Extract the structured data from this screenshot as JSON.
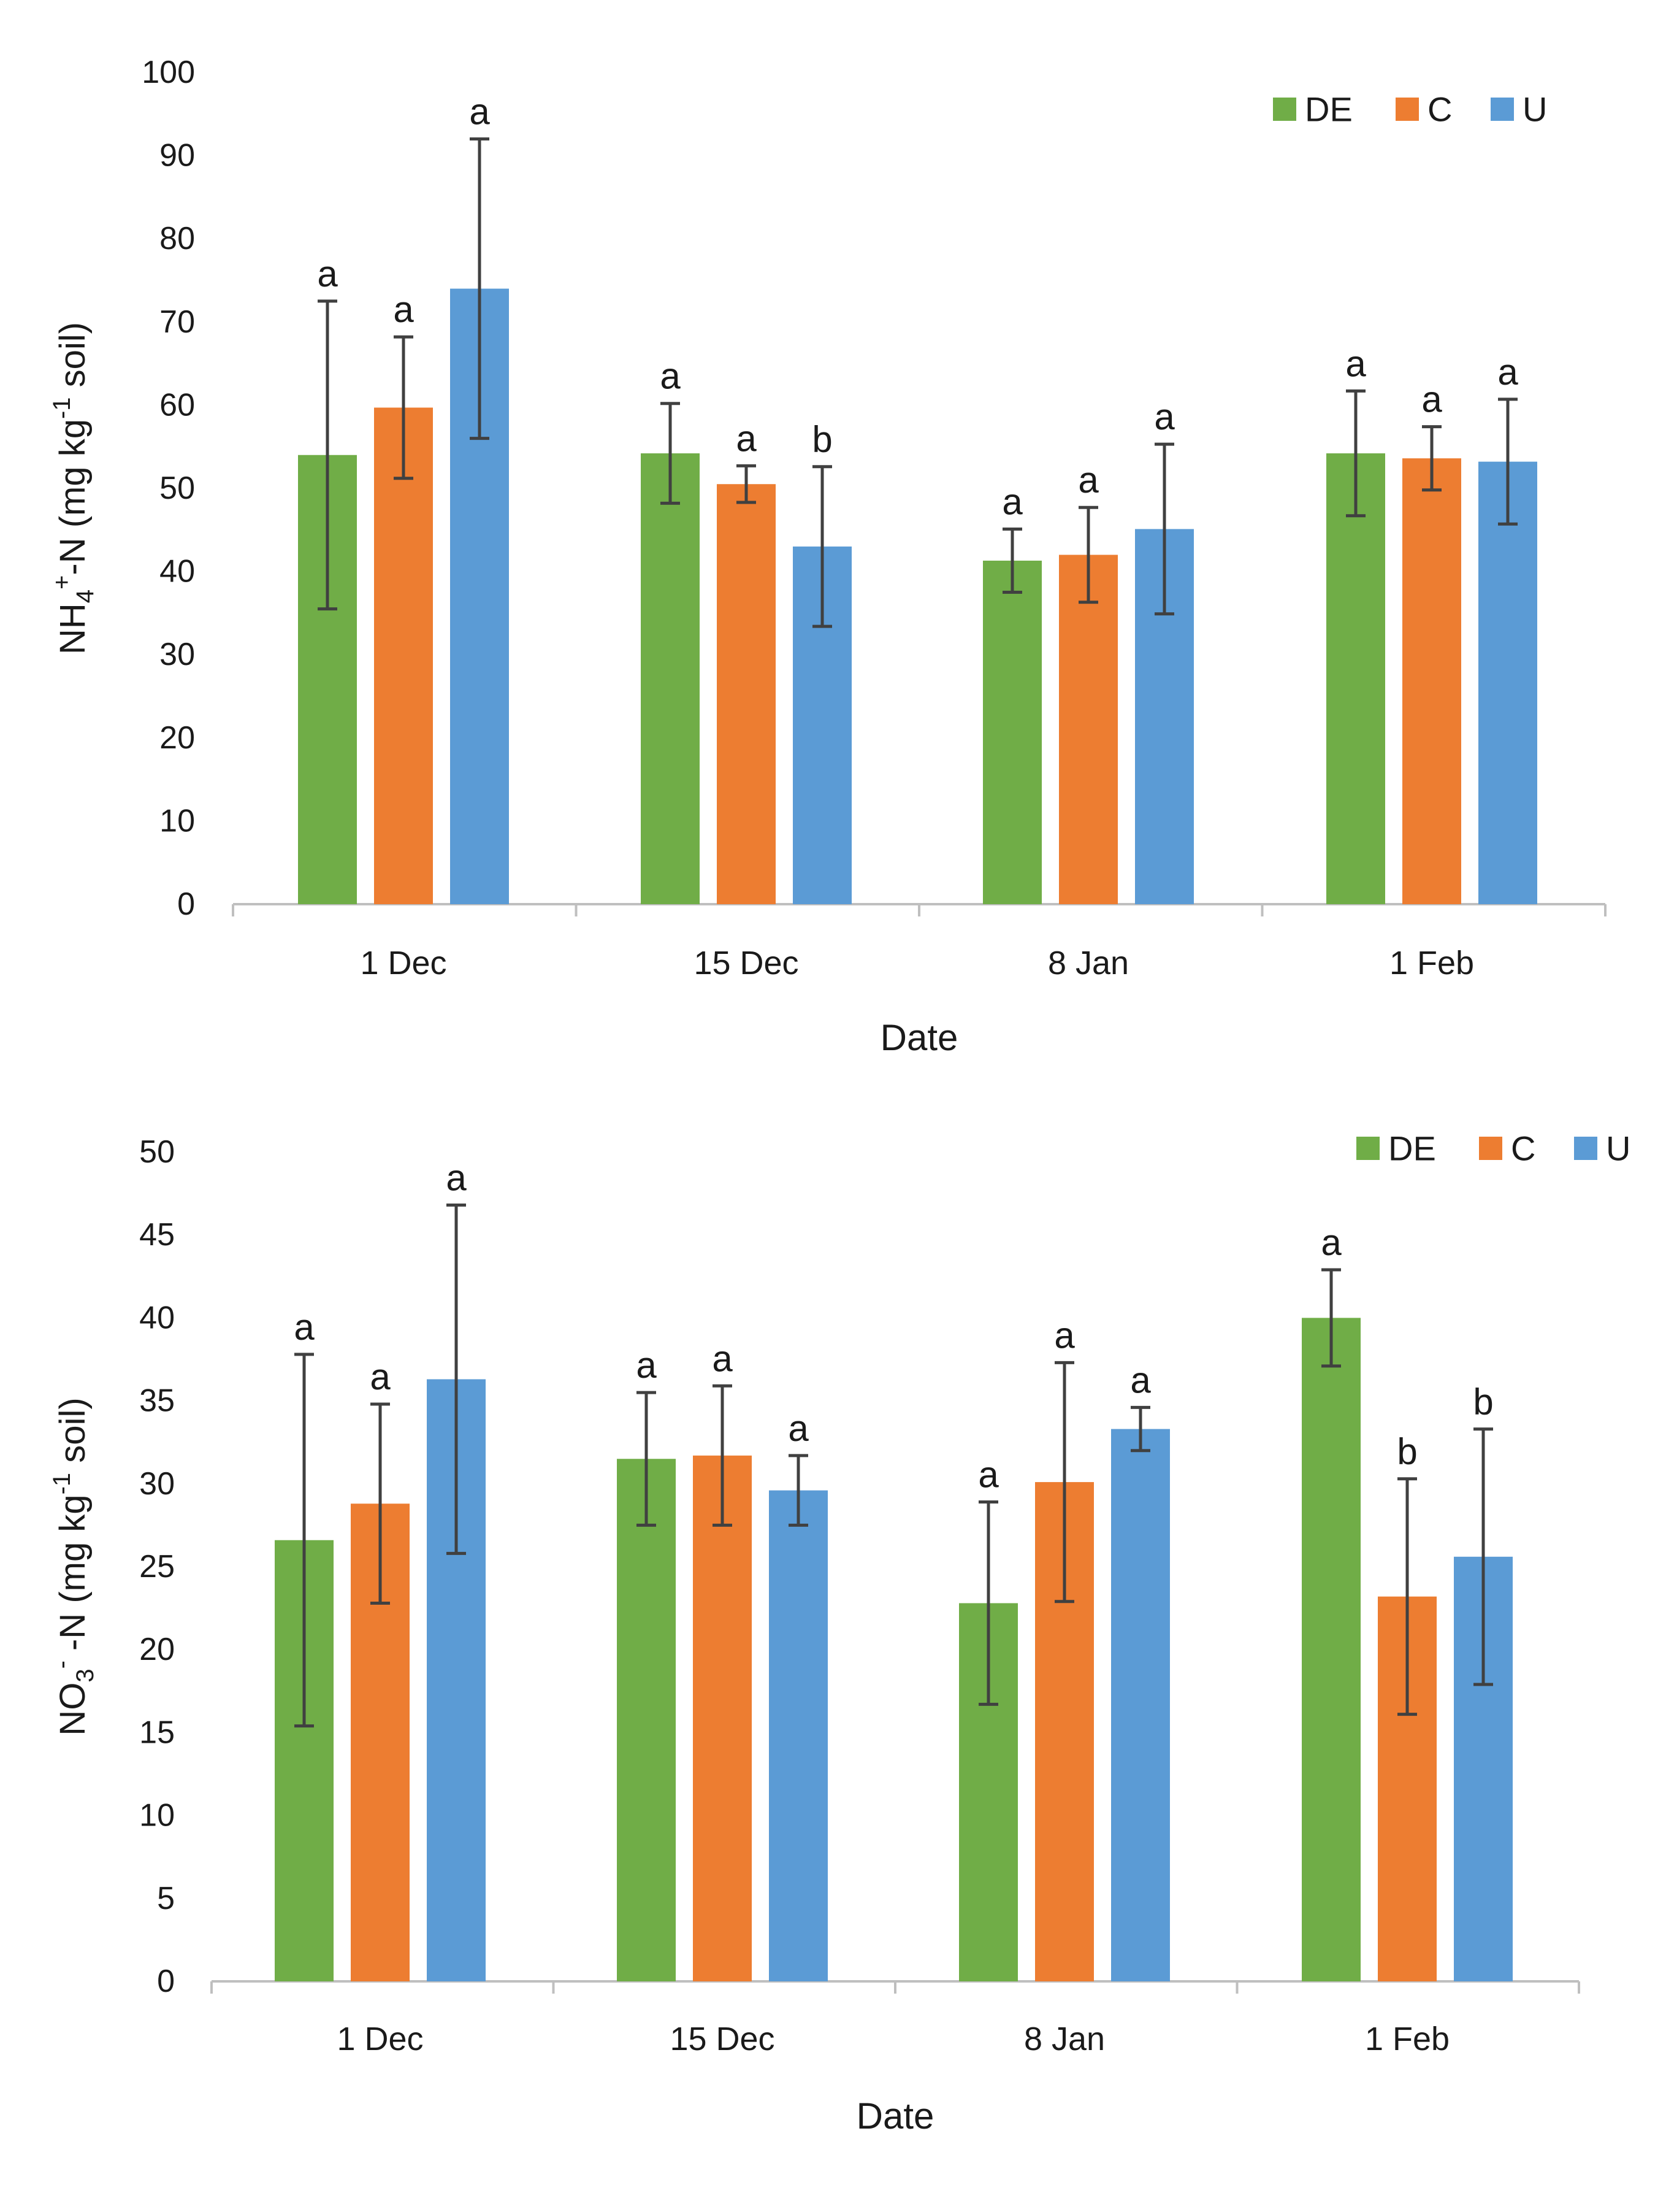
{
  "chart_data": [
    {
      "type": "bar",
      "categories": [
        "1 Dec",
        "15 Dec",
        "8 Jan",
        "1 Feb"
      ],
      "xlabel": "Date",
      "ylabel": "NH4+-N (mg kg-1 soil)",
      "ylabel_parts": {
        "a": "NH",
        "sub": "4",
        "sup1": "+",
        "b": "-N (mg kg",
        "sup2": "-1",
        "c": " soil)"
      },
      "ylim": [
        0,
        100
      ],
      "yticks": [
        0,
        10,
        20,
        30,
        40,
        50,
        60,
        70,
        80,
        90,
        100
      ],
      "legend_position": "top-right",
      "series": [
        {
          "name": "DE",
          "color": "#70ad47",
          "values": [
            54,
            54.2,
            41.3,
            54.2
          ],
          "error": [
            18.5,
            6,
            3.8,
            7.5
          ],
          "letters": [
            "a",
            "a",
            "a",
            "a"
          ]
        },
        {
          "name": "C",
          "color": "#ed7d31",
          "values": [
            59.7,
            50.5,
            42,
            53.6
          ],
          "error": [
            8.5,
            2.2,
            5.7,
            3.8
          ],
          "letters": [
            "a",
            "a",
            "a",
            "a"
          ]
        },
        {
          "name": "U",
          "color": "#5b9bd5",
          "values": [
            74,
            43,
            45.1,
            53.2
          ],
          "error": [
            18,
            9.6,
            10.2,
            7.5
          ],
          "letters": [
            "a",
            "b",
            "a",
            "a"
          ]
        }
      ]
    },
    {
      "type": "bar",
      "categories": [
        "1 Dec",
        "15 Dec",
        "8 Jan",
        "1 Feb"
      ],
      "xlabel": "Date",
      "ylabel": "NO3- -N (mg kg-1 soil)",
      "ylabel_parts": {
        "a": "NO",
        "sub": "3",
        "sup1": "-",
        "b": " -N (mg kg",
        "sup2": "-1",
        "c": " soil)"
      },
      "ylim": [
        0,
        50
      ],
      "yticks": [
        0,
        5,
        10,
        15,
        20,
        25,
        30,
        35,
        40,
        45,
        50
      ],
      "legend_position": "top-right",
      "series": [
        {
          "name": "DE",
          "color": "#70ad47",
          "values": [
            26.6,
            31.5,
            22.8,
            40
          ],
          "error": [
            11.2,
            4,
            6.1,
            2.9
          ],
          "letters": [
            "a",
            "a",
            "a",
            "a"
          ]
        },
        {
          "name": "C",
          "color": "#ed7d31",
          "values": [
            28.8,
            31.7,
            30.1,
            23.2
          ],
          "error": [
            6,
            4.2,
            7.2,
            7.1
          ],
          "letters": [
            "a",
            "a",
            "a",
            "b"
          ]
        },
        {
          "name": "U",
          "color": "#5b9bd5",
          "values": [
            36.3,
            29.6,
            33.3,
            25.6
          ],
          "error": [
            10.5,
            2.1,
            1.3,
            7.7
          ],
          "letters": [
            "a",
            "a",
            "a",
            "b"
          ]
        }
      ]
    }
  ]
}
